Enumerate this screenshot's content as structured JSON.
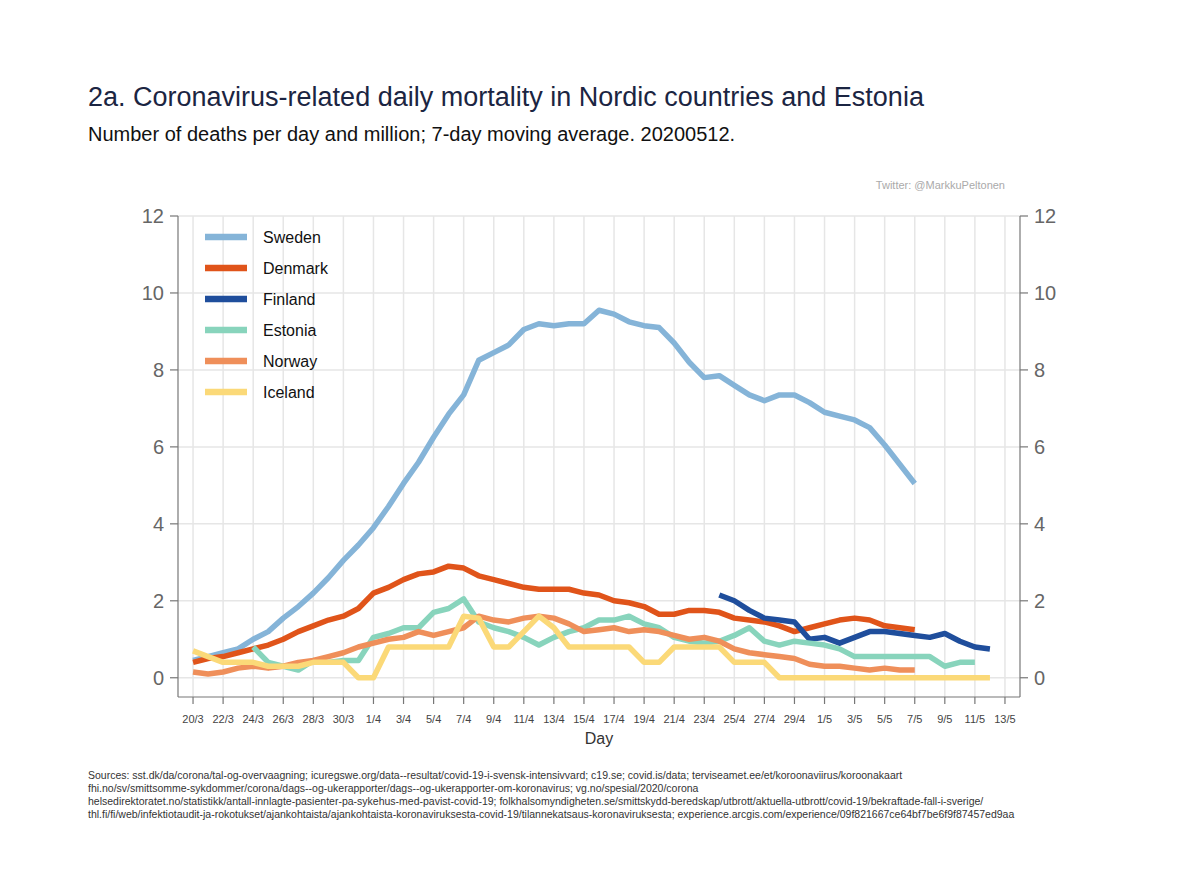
{
  "chart_data": {
    "type": "line",
    "title": "2a. Coronavirus-related daily mortality in Nordic countries and Estonia",
    "subtitle": "Number of deaths per day and million; 7-day moving average. 20200512.",
    "annotations": [
      "Twitter: @MarkkuPeltonen"
    ],
    "source": [
      "Sources: sst.dk/da/corona/tal-og-overvaagning; icuregswe.org/data--resultat/covid-19-i-svensk-intensivvard; c19.se; covid.is/data;  terviseamet.ee/et/koroonaviirus/koroonakaart",
      "fhi.no/sv/smittsomme-sykdommer/corona/dags--og-ukerapporter/dags--og-ukerapporter-om-koronavirus; vg.no/spesial/2020/corona",
      "helsedirektoratet.no/statistikk/antall-innlagte-pasienter-pa-sykehus-med-pavist-covid-19; folkhalsomyndigheten.se/smittskydd-beredskap/utbrott/aktuella-utbrott/covid-19/bekraftade-fall-i-sverige/",
      "thl.fi/fi/web/infektiotaudit-ja-rokotukset/ajankohtaista/ajankohtaista-koronaviruksesta-covid-19/tilannekatsaus-koronaviruksesta; experience.arcgis.com/experience/09f821667ce64bf7be6f9f87457ed9aa"
    ],
    "x_label": "Day",
    "categories": [
      "20/3",
      null,
      "22/3",
      null,
      "24/3",
      null,
      "26/3",
      null,
      "28/3",
      null,
      "30/3",
      null,
      "1/4",
      null,
      "3/4",
      null,
      "5/4",
      null,
      "7/4",
      null,
      "9/4",
      null,
      "11/4",
      null,
      "13/4",
      null,
      "15/4",
      null,
      "17/4",
      null,
      "19/4",
      null,
      "21/4",
      null,
      "23/4",
      null,
      "25/4",
      null,
      "27/4",
      null,
      "29/4",
      null,
      "1/5",
      null,
      "3/5",
      null,
      "5/5",
      null,
      "7/5",
      null,
      "9/5",
      null,
      "11/5",
      null,
      "13/5"
    ],
    "ylim": [
      -0.5,
      12
    ],
    "yticks": [
      0,
      2,
      4,
      6,
      8,
      10,
      12
    ],
    "grid": true,
    "legend": "upper-left",
    "series": [
      {
        "name": "Sweden",
        "color": "#85b4d8",
        "values": [
          0.45,
          0.55,
          0.65,
          0.75,
          1.0,
          1.2,
          1.55,
          1.85,
          2.2,
          2.6,
          3.05,
          3.45,
          3.9,
          4.45,
          5.05,
          5.6,
          6.25,
          6.85,
          7.35,
          8.25,
          8.45,
          8.65,
          9.05,
          9.2,
          9.15,
          9.2,
          9.2,
          9.55,
          9.45,
          9.25,
          9.15,
          9.1,
          8.7,
          8.2,
          7.8,
          7.85,
          7.6,
          7.35,
          7.2,
          7.35,
          7.35,
          7.15,
          6.9,
          6.8,
          6.7,
          6.5,
          6.05,
          5.55,
          5.05,
          null,
          null,
          null,
          null,
          null,
          null
        ]
      },
      {
        "name": "Denmark",
        "color": "#e0541a",
        "values": [
          0.4,
          0.5,
          0.55,
          0.65,
          0.75,
          0.85,
          1.0,
          1.2,
          1.35,
          1.5,
          1.6,
          1.8,
          2.2,
          2.35,
          2.55,
          2.7,
          2.75,
          2.9,
          2.85,
          2.65,
          2.55,
          2.45,
          2.35,
          2.3,
          2.3,
          2.3,
          2.2,
          2.15,
          2.0,
          1.95,
          1.85,
          1.65,
          1.65,
          1.75,
          1.75,
          1.7,
          1.55,
          1.5,
          1.45,
          1.35,
          1.2,
          1.3,
          1.4,
          1.5,
          1.55,
          1.5,
          1.35,
          1.3,
          1.25,
          null,
          null,
          null,
          null,
          null,
          null
        ]
      },
      {
        "name": "Finland",
        "color": "#1f4e9c",
        "values": [
          null,
          null,
          null,
          null,
          null,
          null,
          null,
          null,
          null,
          null,
          null,
          null,
          null,
          null,
          null,
          null,
          null,
          null,
          null,
          null,
          null,
          null,
          null,
          null,
          null,
          null,
          null,
          null,
          null,
          null,
          null,
          null,
          null,
          null,
          null,
          2.15,
          2.0,
          1.75,
          1.55,
          1.5,
          1.45,
          1.0,
          1.05,
          0.9,
          1.05,
          1.2,
          1.2,
          1.15,
          1.1,
          1.05,
          1.15,
          0.95,
          0.8,
          0.75,
          null
        ]
      },
      {
        "name": "Estonia",
        "color": "#88d4bc",
        "values": [
          null,
          null,
          null,
          null,
          0.8,
          0.4,
          0.3,
          0.2,
          0.45,
          0.4,
          0.45,
          0.45,
          1.05,
          1.15,
          1.3,
          1.3,
          1.7,
          1.8,
          2.05,
          1.45,
          1.3,
          1.2,
          1.05,
          0.85,
          1.05,
          1.2,
          1.3,
          1.5,
          1.5,
          1.6,
          1.4,
          1.3,
          1.05,
          0.95,
          0.9,
          0.95,
          1.1,
          1.3,
          0.95,
          0.85,
          0.95,
          0.9,
          0.85,
          0.75,
          0.55,
          0.55,
          0.55,
          0.55,
          0.55,
          0.55,
          0.3,
          0.4,
          0.4,
          null,
          null
        ]
      },
      {
        "name": "Norway",
        "color": "#ef8f5a",
        "values": [
          0.15,
          0.1,
          0.15,
          0.25,
          0.3,
          0.25,
          0.3,
          0.4,
          0.45,
          0.55,
          0.65,
          0.8,
          0.9,
          1.0,
          1.05,
          1.2,
          1.1,
          1.2,
          1.3,
          1.6,
          1.5,
          1.45,
          1.55,
          1.6,
          1.55,
          1.4,
          1.2,
          1.25,
          1.3,
          1.2,
          1.25,
          1.2,
          1.1,
          1.0,
          1.05,
          0.95,
          0.75,
          0.65,
          0.6,
          0.55,
          0.5,
          0.35,
          0.3,
          0.3,
          0.25,
          0.2,
          0.25,
          0.2,
          0.2,
          null,
          null,
          null,
          null,
          null,
          null
        ]
      },
      {
        "name": "Iceland",
        "color": "#fbd978",
        "values": [
          0.7,
          0.55,
          0.4,
          0.4,
          0.4,
          0.3,
          0.3,
          0.3,
          0.4,
          0.4,
          0.4,
          0,
          0,
          0.8,
          0.8,
          0.8,
          0.8,
          0.8,
          1.6,
          1.55,
          0.8,
          0.8,
          1.2,
          1.6,
          1.3,
          0.8,
          0.8,
          0.8,
          0.8,
          0.8,
          0.4,
          0.4,
          0.8,
          0.8,
          0.8,
          0.8,
          0.4,
          0.4,
          0.4,
          0,
          0,
          0,
          0,
          0,
          0,
          0,
          0,
          0,
          0,
          0,
          0,
          0,
          0,
          0,
          null
        ]
      }
    ]
  }
}
